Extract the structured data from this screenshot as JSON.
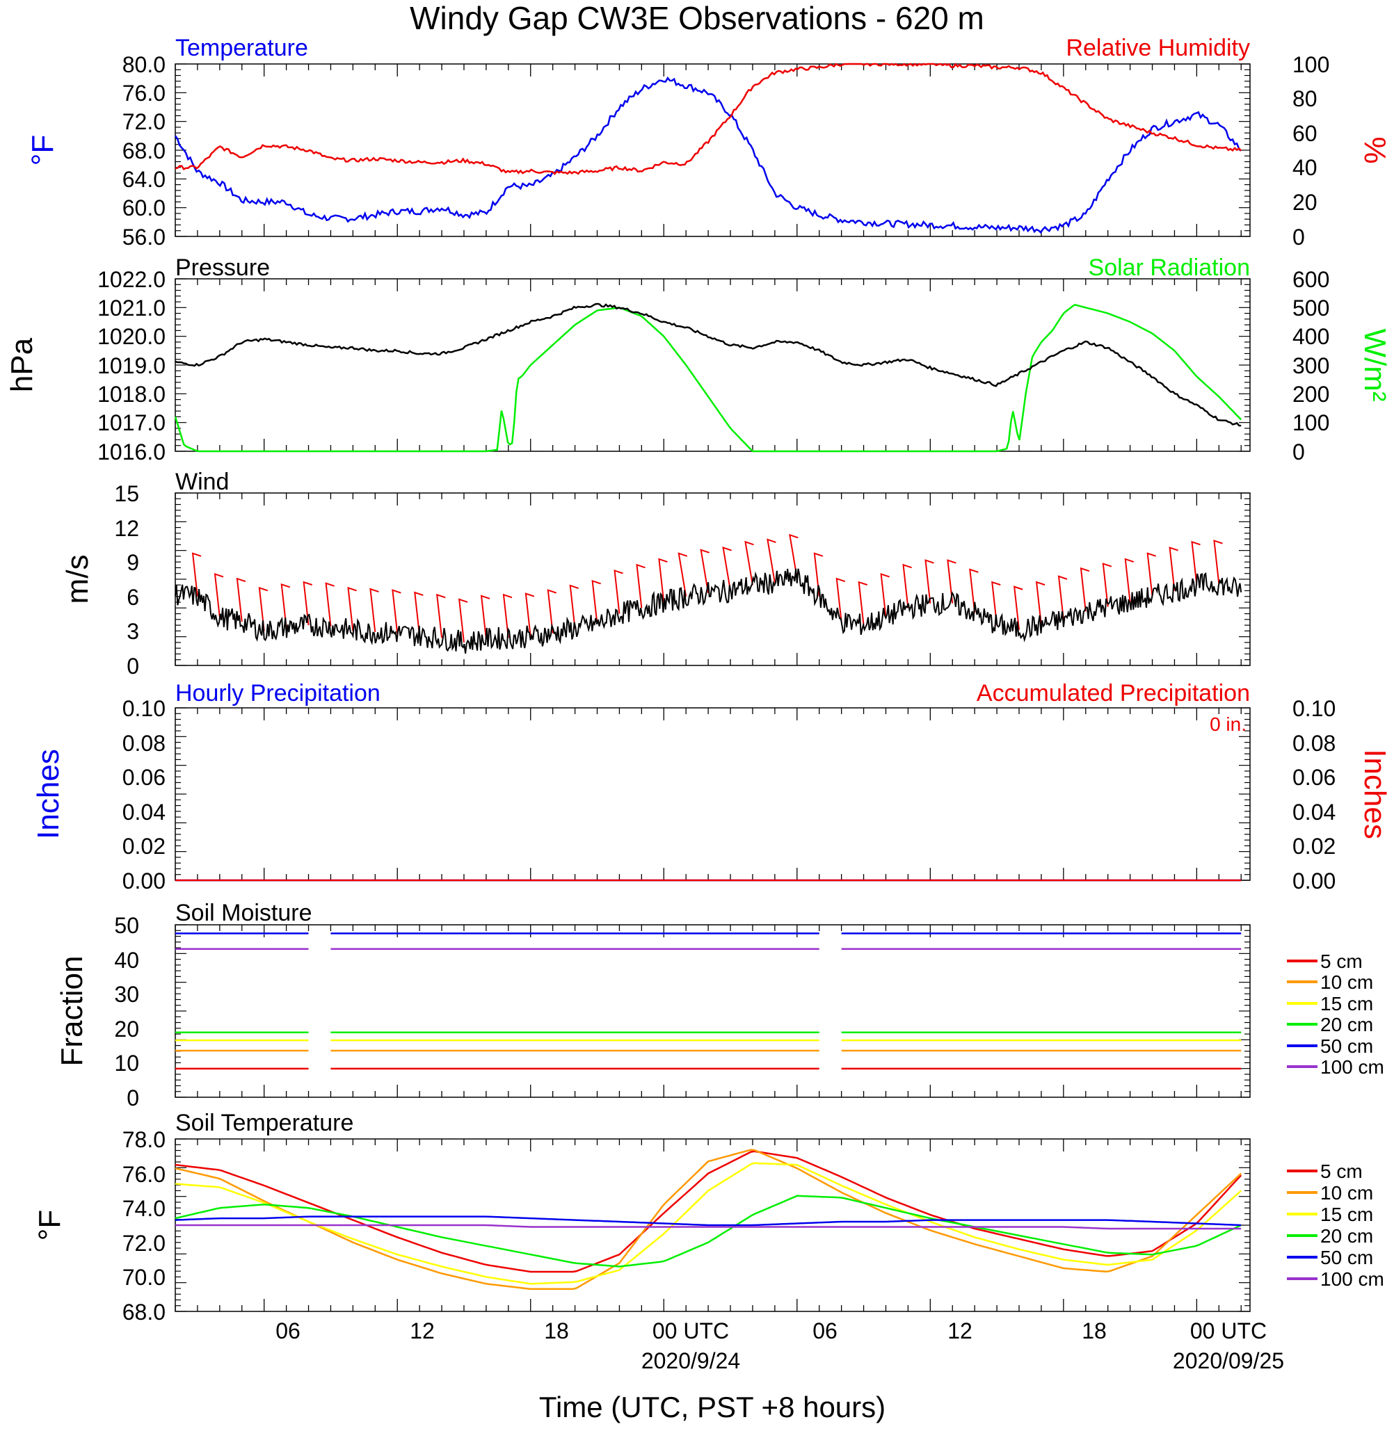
{
  "title": "Windy Gap CW3E Observations - 620 m",
  "colors": {
    "blue": "#0000ee",
    "red": "#ee0000",
    "green": "#00ee00",
    "black": "#000000",
    "orange": "#ff9900",
    "yellow": "#ffff00",
    "purple": "#9933cc"
  },
  "x_axis": {
    "label": "Time (UTC, PST +8 hours)",
    "tick_labels": [
      "06",
      "12",
      "18",
      "00 UTC",
      "06",
      "12",
      "18",
      "00 UTC"
    ],
    "date_labels": [
      "2020/9/24",
      "2020/09/25"
    ]
  },
  "panels": {
    "temp_rh": {
      "left_title": "Temperature",
      "right_title": "Relative Humidity",
      "left_unit": "°F",
      "right_unit": "%",
      "left_ticks": [
        "80.0",
        "76.0",
        "72.0",
        "68.0",
        "64.0",
        "60.0",
        "56.0"
      ],
      "right_ticks": [
        "100",
        "80",
        "60",
        "40",
        "20",
        "0"
      ]
    },
    "pressure_solar": {
      "left_title": "Pressure",
      "right_title": "Solar Radiation",
      "left_unit": "hPa",
      "right_unit": "W/m²",
      "left_ticks": [
        "1022.0",
        "1021.0",
        "1020.0",
        "1019.0",
        "1018.0",
        "1017.0",
        "1016.0"
      ],
      "right_ticks": [
        "600",
        "500",
        "400",
        "300",
        "200",
        "100",
        "0"
      ]
    },
    "wind": {
      "left_title": "Wind",
      "left_unit": "m/s",
      "left_ticks": [
        "15",
        "12",
        "9",
        "6",
        "3",
        "0"
      ]
    },
    "precip": {
      "left_title": "Hourly Precipitation",
      "right_title": "Accumulated Precipitation",
      "accum_note": "0 in.",
      "left_unit": "Inches",
      "right_unit": "Inches",
      "left_ticks": [
        "0.10",
        "0.08",
        "0.06",
        "0.04",
        "0.02",
        "0.00"
      ],
      "right_ticks": [
        "0.10",
        "0.08",
        "0.06",
        "0.04",
        "0.02",
        "0.00"
      ]
    },
    "soil_moisture": {
      "left_title": "Soil Moisture",
      "left_unit": "Fraction",
      "left_ticks": [
        "50",
        "40",
        "30",
        "20",
        "10",
        "0"
      ],
      "legend": [
        "5 cm",
        "10 cm",
        "15 cm",
        "20 cm",
        "50 cm",
        "100 cm"
      ]
    },
    "soil_temp": {
      "left_title": "Soil Temperature",
      "left_unit": "°F",
      "left_ticks": [
        "78.0",
        "76.0",
        "74.0",
        "72.0",
        "70.0",
        "68.0"
      ],
      "legend": [
        "5 cm",
        "10 cm",
        "15 cm",
        "20 cm",
        "50 cm",
        "100 cm"
      ]
    }
  },
  "chart_data": [
    {
      "type": "line",
      "title": "Temperature",
      "ylabel": "°F",
      "ylim": [
        56,
        80
      ],
      "x_hours_from_start": [
        0,
        1,
        2,
        3,
        4,
        5,
        6,
        7,
        8,
        9,
        10,
        11,
        12,
        13,
        14,
        15,
        16,
        17,
        18,
        19,
        20,
        21,
        22,
        23,
        24,
        25,
        26,
        27,
        28,
        29,
        30,
        31,
        32,
        33,
        34,
        35,
        36,
        37,
        38,
        39,
        40,
        41,
        42,
        43,
        44,
        45,
        46,
        47,
        48
      ],
      "series": [
        {
          "name": "Temperature",
          "color": "#0000ee",
          "values": [
            70,
            65,
            63.5,
            61,
            60.8,
            60.8,
            59,
            58.5,
            58.5,
            59,
            59.5,
            59.5,
            60,
            59,
            59.3,
            63,
            63,
            64.5,
            67,
            70,
            74,
            76.5,
            78,
            77,
            76,
            73,
            68,
            62,
            60,
            59,
            58.3,
            58,
            57.8,
            57.7,
            57.6,
            57.5,
            57.3,
            57.2,
            57.2,
            57,
            57.5,
            59,
            64,
            68,
            71,
            72,
            73,
            71.5,
            68
          ]
        }
      ]
    },
    {
      "type": "line",
      "title": "Relative Humidity",
      "ylabel": "%",
      "ylim": [
        0,
        100
      ],
      "x_hours_from_start": [
        0,
        1,
        2,
        3,
        4,
        5,
        6,
        7,
        8,
        9,
        10,
        11,
        12,
        13,
        14,
        15,
        16,
        17,
        18,
        19,
        20,
        21,
        22,
        23,
        24,
        25,
        26,
        27,
        28,
        29,
        30,
        31,
        32,
        33,
        34,
        35,
        36,
        37,
        38,
        39,
        40,
        41,
        42,
        43,
        44,
        45,
        46,
        47,
        48
      ],
      "series": [
        {
          "name": "Relative Humidity",
          "color": "#ee0000",
          "values": [
            40,
            40,
            52,
            46,
            53,
            52,
            50,
            45,
            44,
            45,
            44,
            43,
            43,
            44,
            42,
            37,
            38,
            37,
            37,
            38,
            40,
            38,
            43,
            42,
            55,
            70,
            87,
            95,
            97,
            98,
            100,
            100,
            100,
            100,
            100,
            99,
            99,
            98,
            98,
            95,
            86,
            77,
            68,
            64,
            60,
            57,
            53,
            51,
            50
          ]
        }
      ]
    },
    {
      "type": "line",
      "title": "Pressure",
      "ylabel": "hPa",
      "ylim": [
        1016,
        1022
      ],
      "x_hours_from_start": [
        0,
        1,
        2,
        3,
        4,
        5,
        6,
        7,
        8,
        9,
        10,
        11,
        12,
        13,
        14,
        15,
        16,
        17,
        18,
        19,
        20,
        21,
        22,
        23,
        24,
        25,
        26,
        27,
        28,
        29,
        30,
        31,
        32,
        33,
        34,
        35,
        36,
        37,
        38,
        39,
        40,
        41,
        42,
        43,
        44,
        45,
        46,
        47,
        48
      ],
      "series": [
        {
          "name": "Pressure",
          "color": "#000000",
          "values": [
            1019.1,
            1019.0,
            1019.3,
            1019.8,
            1019.9,
            1019.8,
            1019.7,
            1019.6,
            1019.6,
            1019.5,
            1019.5,
            1019.4,
            1019.4,
            1019.6,
            1019.9,
            1020.2,
            1020.5,
            1020.7,
            1021.0,
            1021.1,
            1021.0,
            1020.8,
            1020.5,
            1020.3,
            1020.0,
            1019.7,
            1019.6,
            1019.8,
            1019.8,
            1019.5,
            1019.1,
            1019.0,
            1019.1,
            1019.2,
            1018.9,
            1018.7,
            1018.5,
            1018.3,
            1018.7,
            1019.1,
            1019.5,
            1019.8,
            1019.6,
            1019.1,
            1018.6,
            1018.0,
            1017.6,
            1017.1,
            1016.9
          ]
        }
      ]
    },
    {
      "type": "line",
      "title": "Solar Radiation",
      "ylabel": "W/m²",
      "ylim": [
        0,
        600
      ],
      "x_hours_from_start": [
        0,
        0.4,
        1,
        14,
        14.5,
        14.7,
        15,
        15.2,
        15.4,
        15.6,
        16,
        17,
        18,
        19,
        20,
        21,
        22,
        23,
        24,
        25,
        26,
        37,
        37.5,
        37.7,
        38,
        38.3,
        38.6,
        39,
        39.5,
        40,
        40.5,
        41,
        41.5,
        42,
        43,
        44,
        45,
        46,
        47,
        48
      ],
      "series": [
        {
          "name": "Solar Radiation",
          "color": "#00ee00",
          "values": [
            120,
            20,
            0,
            0,
            5,
            150,
            20,
            30,
            250,
            260,
            300,
            370,
            440,
            490,
            500,
            470,
            400,
            300,
            190,
            80,
            0,
            0,
            10,
            150,
            30,
            200,
            330,
            380,
            420,
            480,
            510,
            500,
            490,
            480,
            450,
            410,
            350,
            260,
            190,
            110
          ]
        }
      ]
    },
    {
      "type": "line",
      "title": "Wind",
      "ylabel": "m/s",
      "ylim": [
        0,
        15
      ],
      "x_hours_from_start": [
        0,
        1,
        2,
        3,
        4,
        5,
        6,
        7,
        8,
        9,
        10,
        11,
        12,
        13,
        14,
        15,
        16,
        17,
        18,
        19,
        20,
        21,
        22,
        23,
        24,
        25,
        26,
        27,
        28,
        29,
        30,
        31,
        32,
        33,
        34,
        35,
        36,
        37,
        38,
        39,
        40,
        41,
        42,
        43,
        44,
        45,
        46,
        47,
        48
      ],
      "series": [
        {
          "name": "Wind",
          "color": "#000000",
          "values": [
            6.2,
            6.0,
            4.2,
            3.8,
            3.0,
            3.3,
            3.5,
            3.4,
            3.0,
            2.9,
            2.8,
            2.6,
            2.4,
            2.0,
            2.3,
            2.4,
            2.5,
            2.8,
            3.2,
            3.6,
            4.5,
            5.0,
            5.5,
            6.0,
            6.3,
            6.5,
            7.0,
            7.2,
            7.6,
            6.0,
            3.8,
            3.5,
            4.2,
            5.0,
            5.4,
            5.4,
            4.6,
            3.5,
            3.1,
            3.5,
            4.0,
            4.7,
            5.1,
            5.5,
            6.0,
            6.5,
            7.0,
            7.1,
            6.5
          ]
        }
      ]
    },
    {
      "type": "line",
      "title": "Hourly Precipitation",
      "ylabel": "Inches",
      "ylim": [
        0,
        0.1
      ],
      "x_hours_from_start": [
        0,
        48
      ],
      "series": [
        {
          "name": "Hourly Precipitation",
          "color": "#0000ee",
          "values": [
            0,
            0
          ]
        },
        {
          "name": "Accumulated Precipitation",
          "color": "#ee0000",
          "values": [
            0,
            0
          ]
        }
      ]
    },
    {
      "type": "line",
      "title": "Soil Moisture",
      "ylabel": "Fraction",
      "ylim": [
        0,
        50
      ],
      "x_hours_from_start": [
        0,
        48
      ],
      "gaps_hours": [
        [
          6,
          7
        ],
        [
          29,
          30
        ]
      ],
      "series": [
        {
          "name": "5 cm",
          "color": "#ee0000",
          "values": [
            8.3,
            8.3
          ]
        },
        {
          "name": "10 cm",
          "color": "#ff9900",
          "values": [
            13.5,
            13.5
          ]
        },
        {
          "name": "15 cm",
          "color": "#ffff00",
          "values": [
            16.5,
            16.5
          ]
        },
        {
          "name": "20 cm",
          "color": "#00ee00",
          "values": [
            18.8,
            18.8
          ]
        },
        {
          "name": "50 cm",
          "color": "#0000ee",
          "values": [
            47.5,
            47.5
          ]
        },
        {
          "name": "100 cm",
          "color": "#9933cc",
          "values": [
            43.0,
            43.0
          ]
        }
      ]
    },
    {
      "type": "line",
      "title": "Soil Temperature",
      "ylabel": "°F",
      "ylim": [
        68,
        78
      ],
      "x_hours_from_start": [
        0,
        2,
        4,
        6,
        8,
        10,
        12,
        14,
        16,
        18,
        20,
        22,
        24,
        26,
        28,
        30,
        32,
        34,
        36,
        38,
        40,
        42,
        44,
        46,
        48
      ],
      "series": [
        {
          "name": "5 cm",
          "color": "#ee0000",
          "values": [
            76.5,
            76.2,
            75.3,
            74.3,
            73.3,
            72.3,
            71.4,
            70.7,
            70.3,
            70.3,
            71.3,
            73.7,
            76.0,
            77.3,
            76.9,
            75.8,
            74.6,
            73.6,
            72.8,
            72.2,
            71.6,
            71.2,
            71.5,
            73.1,
            75.9
          ]
        },
        {
          "name": "10 cm",
          "color": "#ff9900",
          "values": [
            76.3,
            75.7,
            74.4,
            73.2,
            72.0,
            71.0,
            70.2,
            69.6,
            69.3,
            69.3,
            70.8,
            74.2,
            76.7,
            77.4,
            76.3,
            74.9,
            73.7,
            72.7,
            71.9,
            71.2,
            70.5,
            70.3,
            71.2,
            73.6,
            76.0
          ]
        },
        {
          "name": "15 cm",
          "color": "#ffff00",
          "values": [
            75.4,
            75.2,
            74.3,
            73.2,
            72.2,
            71.3,
            70.6,
            70.0,
            69.6,
            69.7,
            70.4,
            72.5,
            75.0,
            76.6,
            76.5,
            75.3,
            74.2,
            73.2,
            72.3,
            71.6,
            71.0,
            70.7,
            71.0,
            72.7,
            75.0
          ]
        },
        {
          "name": "20 cm",
          "color": "#00ee00",
          "values": [
            73.4,
            74.0,
            74.2,
            74.0,
            73.5,
            72.9,
            72.3,
            71.8,
            71.3,
            70.8,
            70.6,
            70.9,
            72.0,
            73.6,
            74.7,
            74.6,
            74.0,
            73.4,
            72.9,
            72.4,
            71.9,
            71.4,
            71.3,
            71.8,
            73.0
          ]
        },
        {
          "name": "50 cm",
          "color": "#0000ee",
          "values": [
            73.3,
            73.4,
            73.4,
            73.5,
            73.5,
            73.5,
            73.5,
            73.5,
            73.4,
            73.3,
            73.2,
            73.1,
            73.0,
            73.0,
            73.1,
            73.2,
            73.2,
            73.3,
            73.3,
            73.3,
            73.3,
            73.3,
            73.2,
            73.1,
            73.0
          ]
        },
        {
          "name": "100 cm",
          "color": "#9933cc",
          "values": [
            73.0,
            73.0,
            73.0,
            73.0,
            73.0,
            73.0,
            73.0,
            73.0,
            72.9,
            72.9,
            72.9,
            72.9,
            72.9,
            72.9,
            72.9,
            72.9,
            72.9,
            72.9,
            72.9,
            72.9,
            72.9,
            72.8,
            72.8,
            72.8,
            72.8
          ]
        }
      ]
    }
  ]
}
